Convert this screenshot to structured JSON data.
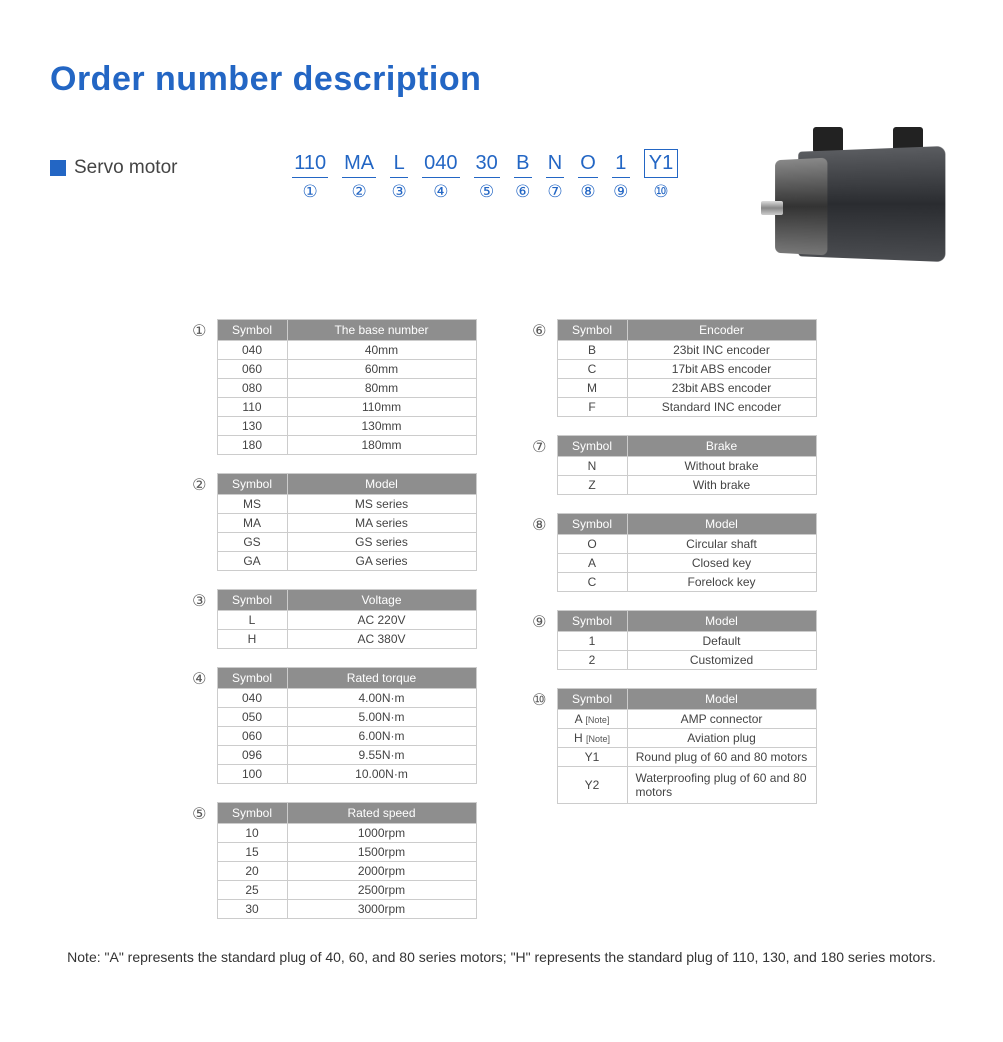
{
  "title": "Order number description",
  "section_label": "Servo motor",
  "code": {
    "segments": [
      {
        "val": "110",
        "num": "①"
      },
      {
        "val": "MA",
        "num": "②"
      },
      {
        "val": "L",
        "num": "③"
      },
      {
        "val": "040",
        "num": "④"
      },
      {
        "val": "30",
        "num": "⑤"
      },
      {
        "val": "B",
        "num": "⑥"
      },
      {
        "val": "N",
        "num": "⑦"
      },
      {
        "val": "O",
        "num": "⑧"
      },
      {
        "val": "1",
        "num": "⑨"
      },
      {
        "val": "Y1",
        "num": "⑩",
        "boxed": true
      }
    ]
  },
  "left_tables": [
    {
      "num": "①",
      "h1": "Symbol",
      "h2": "The base number",
      "rows": [
        [
          "040",
          "40mm"
        ],
        [
          "060",
          "60mm"
        ],
        [
          "080",
          "80mm"
        ],
        [
          "110",
          "110mm"
        ],
        [
          "130",
          "130mm"
        ],
        [
          "180",
          "180mm"
        ]
      ]
    },
    {
      "num": "②",
      "h1": "Symbol",
      "h2": "Model",
      "rows": [
        [
          "MS",
          "MS series"
        ],
        [
          "MA",
          "MA series"
        ],
        [
          "GS",
          "GS series"
        ],
        [
          "GA",
          "GA series"
        ]
      ]
    },
    {
      "num": "③",
      "h1": "Symbol",
      "h2": "Voltage",
      "rows": [
        [
          "L",
          "AC 220V"
        ],
        [
          "H",
          "AC 380V"
        ]
      ]
    },
    {
      "num": "④",
      "h1": "Symbol",
      "h2": "Rated torque",
      "rows": [
        [
          "040",
          "4.00N·m"
        ],
        [
          "050",
          "5.00N·m"
        ],
        [
          "060",
          "6.00N·m"
        ],
        [
          "096",
          "9.55N·m"
        ],
        [
          "100",
          "10.00N·m"
        ]
      ]
    },
    {
      "num": "⑤",
      "h1": "Symbol",
      "h2": "Rated speed",
      "rows": [
        [
          "10",
          "1000rpm"
        ],
        [
          "15",
          "1500rpm"
        ],
        [
          "20",
          "2000rpm"
        ],
        [
          "25",
          "2500rpm"
        ],
        [
          "30",
          "3000rpm"
        ]
      ]
    }
  ],
  "right_tables": [
    {
      "num": "⑥",
      "h1": "Symbol",
      "h2": "Encoder",
      "rows": [
        [
          "B",
          "23bit INC encoder"
        ],
        [
          "C",
          "17bit ABS encoder"
        ],
        [
          "M",
          "23bit ABS encoder"
        ],
        [
          "F",
          "Standard INC encoder"
        ]
      ]
    },
    {
      "num": "⑦",
      "h1": "Symbol",
      "h2": "Brake",
      "rows": [
        [
          "N",
          "Without brake"
        ],
        [
          "Z",
          "With brake"
        ]
      ]
    },
    {
      "num": "⑧",
      "h1": "Symbol",
      "h2": "Model",
      "rows": [
        [
          "O",
          "Circular shaft"
        ],
        [
          "A",
          "Closed key"
        ],
        [
          "C",
          "Forelock key"
        ]
      ]
    },
    {
      "num": "⑨",
      "h1": "Symbol",
      "h2": "Model",
      "rows": [
        [
          "1",
          "Default"
        ],
        [
          "2",
          "Customized"
        ]
      ]
    },
    {
      "num": "⑩",
      "h1": "Symbol",
      "h2": "Model",
      "note_rows": [
        0,
        1
      ],
      "rows": [
        [
          "A",
          "AMP connector"
        ],
        [
          "H",
          "Aviation plug"
        ],
        [
          "Y1",
          "Round plug of 60 and 80 motors"
        ],
        [
          "Y2",
          "Waterproofing plug of 60 and 80 motors"
        ]
      ]
    }
  ],
  "note_marker": "[Note]",
  "footnote": "Note: \"A\" represents the standard plug of 40, 60, and 80 series motors; \"H\" represents the standard plug of 110, 130, and 180 series motors."
}
